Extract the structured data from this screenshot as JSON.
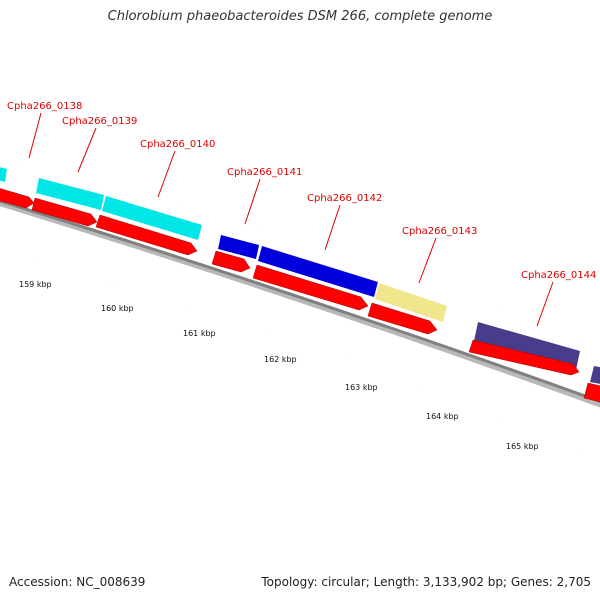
{
  "header": {
    "title": "Chlorobium phaeobacteroides DSM 266, complete genome"
  },
  "footer": {
    "accession": "Accession: NC_008639",
    "topology": "Topology: circular; Length: 3,133,902 bp; Genes: 2,705"
  },
  "colors": {
    "cds_red": "#ff0000",
    "cyan": "#00ffff",
    "blue": "#0000ee",
    "khaki": "#f0e68c",
    "slate": "#483d8b",
    "backbone": "#808080",
    "tick_green": "#2e8b00",
    "label_red": "#dd0000"
  },
  "genes": [
    {
      "label": "Cpha266_0138",
      "color": "cyan"
    },
    {
      "label": "Cpha266_0139",
      "color": "cyan"
    },
    {
      "label": "Cpha266_0140",
      "color": "cyan"
    },
    {
      "label": "Cpha266_0141",
      "color": "blue"
    },
    {
      "label": "Cpha266_0142",
      "color": "blue"
    },
    {
      "label": "Cpha266_0143",
      "color": "khaki"
    },
    {
      "label": "Cpha266_0144",
      "color": "slate"
    }
  ],
  "scale": {
    "labels": [
      "159 kbp",
      "160 kbp",
      "161 kbp",
      "162 kbp",
      "163 kbp",
      "164 kbp",
      "165 kbp"
    ]
  }
}
